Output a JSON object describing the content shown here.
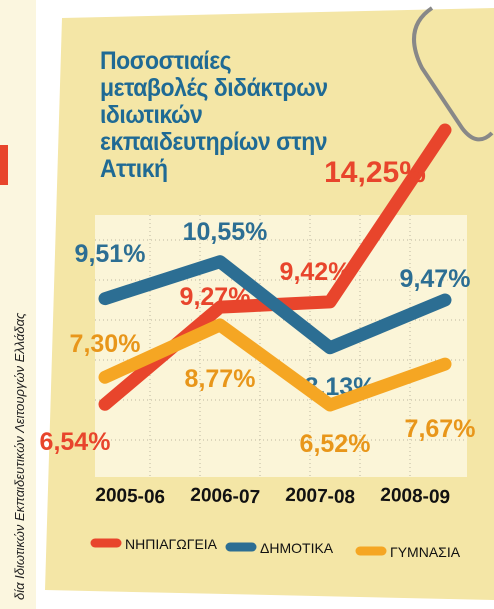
{
  "chart_data": {
    "type": "line",
    "title": "Ποσοστιαίες μεταβολές διδάκτρων ιδιωτικών εκπαιδευτηρίων στην Αττική",
    "source": "δία Ιδιωτικών Εκπαιδευτικών Λειτουργών Ελλάδας",
    "categories": [
      "2005-06",
      "2006-07",
      "2007-08",
      "2008-09"
    ],
    "series": [
      {
        "name": "ΝΗΠΙΑΓΩΓΕΙΑ",
        "color": "#e8452c",
        "values": [
          6.54,
          9.27,
          9.42,
          14.25
        ],
        "value_labels": [
          "6,54%",
          "9,27%",
          "9,42%",
          "14,25%"
        ]
      },
      {
        "name": "ΔΗΜΟΤΙΚΑ",
        "color": "#2c6e93",
        "values": [
          9.51,
          10.55,
          8.13,
          9.47
        ],
        "value_labels": [
          "9,51%",
          "10,55%",
          "8,13%",
          "9,47%"
        ]
      },
      {
        "name": "ΓΥΜΝΑΣΙΑ",
        "color": "#f5a623",
        "values": [
          7.3,
          8.77,
          6.52,
          7.67
        ],
        "value_labels": [
          "7,30%",
          "8,77%",
          "6,52%",
          "7,67%"
        ]
      }
    ]
  }
}
